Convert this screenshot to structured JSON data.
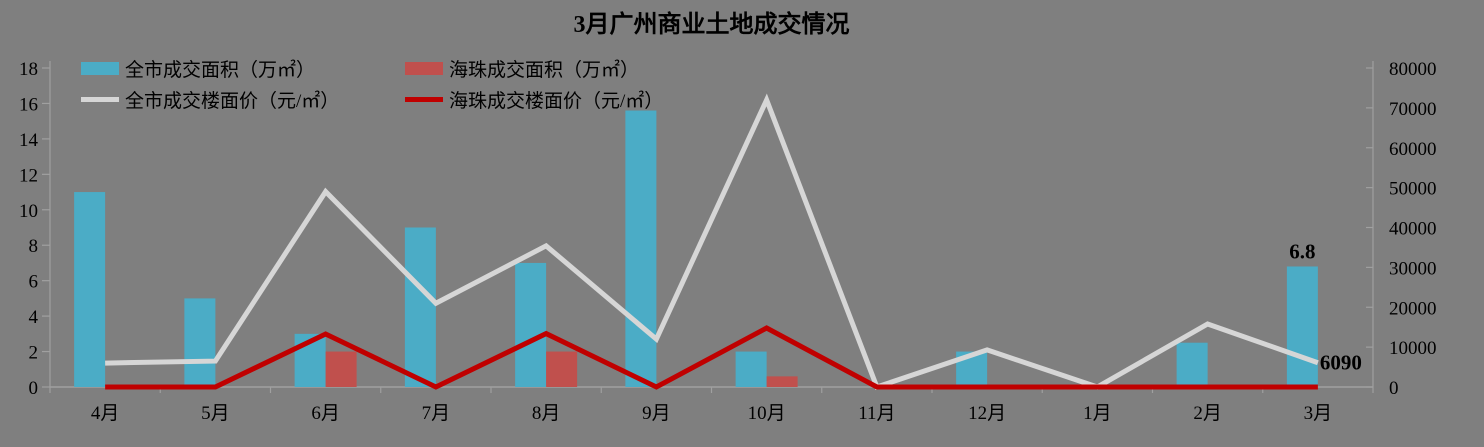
{
  "title": "3月广州商业土地成交情况",
  "legend": [
    {
      "label": "全市成交面积（万㎡）",
      "type": "bar",
      "color": "#4BACC6"
    },
    {
      "label": "海珠成交面积（万㎡）",
      "type": "bar",
      "color": "#C0504D"
    },
    {
      "label": "全市成交楼面价（元/㎡）",
      "type": "line",
      "color": "#D6D6D6"
    },
    {
      "label": "海珠成交楼面价（元/㎡）",
      "type": "line",
      "color": "#C00000"
    }
  ],
  "chart_data": {
    "type": "bar",
    "subtype": "combo-bar-line-dual-axis",
    "title": "3月广州商业土地成交情况",
    "categories": [
      "4月",
      "5月",
      "6月",
      "7月",
      "8月",
      "9月",
      "10月",
      "11月",
      "12月",
      "1月",
      "2月",
      "3月"
    ],
    "bar_series": [
      {
        "name": "全市成交面积（万㎡）",
        "axis": "left",
        "color": "#4BACC6",
        "values": [
          11,
          5,
          3,
          9,
          7,
          15.6,
          2,
          0,
          2,
          0,
          2.5,
          6.8
        ]
      },
      {
        "name": "海珠成交面积（万㎡）",
        "axis": "left",
        "color": "#C0504D",
        "values": [
          0,
          0,
          2,
          0,
          2,
          0,
          0.6,
          0,
          0,
          0,
          0,
          0
        ]
      }
    ],
    "line_series": [
      {
        "name": "全市成交楼面价（元/㎡）",
        "axis": "right",
        "color": "#D6D6D6",
        "values": [
          6000,
          6500,
          49000,
          21000,
          35400,
          12000,
          72000,
          0,
          9300,
          0,
          15800,
          6090
        ]
      },
      {
        "name": "海珠成交楼面价（元/㎡）",
        "axis": "right",
        "color": "#C00000",
        "values": [
          0,
          0,
          13300,
          0,
          13400,
          0,
          14800,
          0,
          0,
          0,
          0,
          0
        ]
      }
    ],
    "left_axis": {
      "min": 0,
      "max": 18,
      "step": 2,
      "ticks": [
        0,
        2,
        4,
        6,
        8,
        10,
        12,
        14,
        16,
        18
      ]
    },
    "right_axis": {
      "min": 0,
      "max": 80000,
      "step": 10000,
      "ticks": [
        0,
        10000,
        20000,
        30000,
        40000,
        50000,
        60000,
        70000,
        80000
      ]
    },
    "annotations": [
      {
        "text": "6.8",
        "category": "3月",
        "series": "全市成交面积（万㎡）",
        "placement": "above-bar"
      },
      {
        "text": "6090",
        "category": "3月",
        "series": "全市成交楼面价（元/㎡）",
        "placement": "right-of-line-end"
      }
    ],
    "grid": false,
    "legend_position": "top-left"
  },
  "colors": {
    "background": "#7F7F7F",
    "axis": "#A0A0A0",
    "text": "#000000",
    "bar_citywide": "#4BACC6",
    "bar_haizhu": "#C0504D",
    "line_citywide": "#D6D6D6",
    "line_haizhu": "#C00000"
  }
}
